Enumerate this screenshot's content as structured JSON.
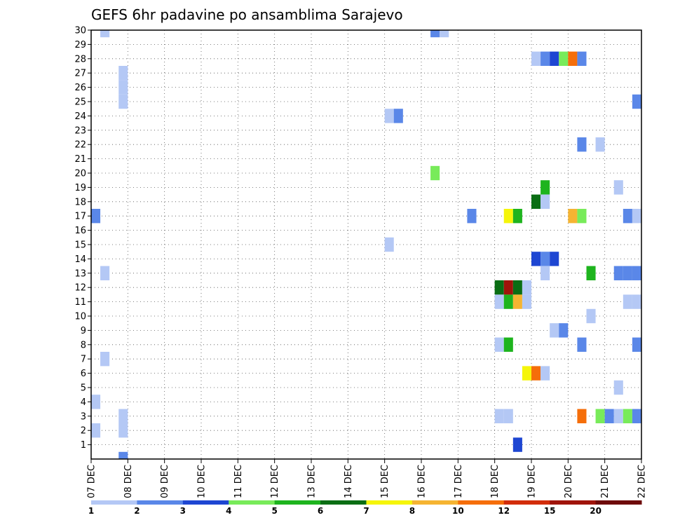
{
  "chart_data": {
    "type": "heatmap",
    "title": "GEFS 6hr padavine po ansamblima Sarajevo",
    "ylabel": "",
    "xlabel": "",
    "y_members": [
      "1",
      "2",
      "3",
      "4",
      "5",
      "6",
      "7",
      "8",
      "9",
      "10",
      "11",
      "12",
      "13",
      "14",
      "15",
      "16",
      "17",
      "18",
      "19",
      "20",
      "21",
      "22",
      "23",
      "24",
      "25",
      "26",
      "27",
      "28",
      "29",
      "30"
    ],
    "x_ticks": [
      "07 DEC",
      "08 DEC",
      "09 DEC",
      "10 DEC",
      "11 DEC",
      "12 DEC",
      "13 DEC",
      "14 DEC",
      "15 DEC",
      "16 DEC",
      "17 DEC",
      "18 DEC",
      "19 DEC",
      "20 DEC",
      "21 DEC",
      "22 DEC"
    ],
    "x_range_days": [
      0,
      15
    ],
    "y_range": [
      0,
      30
    ],
    "grid": true,
    "colorbar": {
      "labels": [
        "1",
        "2",
        "3",
        "4",
        "5",
        "6",
        "7",
        "8",
        "10",
        "12",
        "15",
        "20"
      ],
      "colors": [
        "#b4c8f5",
        "#5a87e8",
        "#1e46d2",
        "#78eb5a",
        "#1eb41e",
        "#0a6e14",
        "#f5f50a",
        "#f5b432",
        "#f56e0a",
        "#d22d0a",
        "#a0140a",
        "#6e0a0a"
      ]
    },
    "cells": [
      {
        "m": 30,
        "t": 0.25,
        "c": 1
      },
      {
        "m": 30,
        "t": 9.25,
        "c": 2
      },
      {
        "m": 30,
        "t": 9.5,
        "c": 1
      },
      {
        "m": 28,
        "t": 12.0,
        "c": 1
      },
      {
        "m": 28,
        "t": 12.25,
        "c": 2
      },
      {
        "m": 28,
        "t": 12.5,
        "c": 3
      },
      {
        "m": 28,
        "t": 12.75,
        "c": 4
      },
      {
        "m": 28,
        "t": 13.0,
        "c": 9
      },
      {
        "m": 28,
        "t": 13.25,
        "c": 2
      },
      {
        "m": 27,
        "t": 0.75,
        "c": 1
      },
      {
        "m": 26,
        "t": 0.75,
        "c": 1
      },
      {
        "m": 25,
        "t": 0.75,
        "c": 1
      },
      {
        "m": 25,
        "t": 14.75,
        "c": 2
      },
      {
        "m": 24,
        "t": 8.0,
        "c": 1
      },
      {
        "m": 24,
        "t": 8.25,
        "c": 2
      },
      {
        "m": 22,
        "t": 13.25,
        "c": 2
      },
      {
        "m": 22,
        "t": 13.75,
        "c": 1
      },
      {
        "m": 20,
        "t": 9.25,
        "c": 4
      },
      {
        "m": 19,
        "t": 12.25,
        "c": 5
      },
      {
        "m": 19,
        "t": 14.25,
        "c": 1
      },
      {
        "m": 18,
        "t": 12.0,
        "c": 6
      },
      {
        "m": 18,
        "t": 12.25,
        "c": 1
      },
      {
        "m": 17,
        "t": 0.0,
        "c": 2
      },
      {
        "m": 17,
        "t": 10.25,
        "c": 2
      },
      {
        "m": 17,
        "t": 11.25,
        "c": 7
      },
      {
        "m": 17,
        "t": 11.5,
        "c": 5
      },
      {
        "m": 17,
        "t": 13.0,
        "c": 8
      },
      {
        "m": 17,
        "t": 13.25,
        "c": 4
      },
      {
        "m": 17,
        "t": 14.5,
        "c": 2
      },
      {
        "m": 17,
        "t": 14.75,
        "c": 1
      },
      {
        "m": 15,
        "t": 8.0,
        "c": 1
      },
      {
        "m": 14,
        "t": 12.0,
        "c": 3
      },
      {
        "m": 14,
        "t": 12.25,
        "c": 2
      },
      {
        "m": 14,
        "t": 12.5,
        "c": 3
      },
      {
        "m": 13,
        "t": 0.25,
        "c": 1
      },
      {
        "m": 13,
        "t": 12.25,
        "c": 1
      },
      {
        "m": 13,
        "t": 13.5,
        "c": 5
      },
      {
        "m": 13,
        "t": 14.25,
        "c": 2
      },
      {
        "m": 13,
        "t": 14.5,
        "c": 2
      },
      {
        "m": 13,
        "t": 14.75,
        "c": 2
      },
      {
        "m": 12,
        "t": 11.0,
        "c": 6
      },
      {
        "m": 12,
        "t": 11.25,
        "c": 11
      },
      {
        "m": 12,
        "t": 11.5,
        "c": 6
      },
      {
        "m": 12,
        "t": 11.75,
        "c": 1
      },
      {
        "m": 11,
        "t": 11.0,
        "c": 1
      },
      {
        "m": 11,
        "t": 11.25,
        "c": 5
      },
      {
        "m": 11,
        "t": 11.5,
        "c": 8
      },
      {
        "m": 11,
        "t": 11.75,
        "c": 1
      },
      {
        "m": 11,
        "t": 14.5,
        "c": 1
      },
      {
        "m": 11,
        "t": 14.75,
        "c": 1
      },
      {
        "m": 10,
        "t": 13.5,
        "c": 1
      },
      {
        "m": 9,
        "t": 12.5,
        "c": 1
      },
      {
        "m": 9,
        "t": 12.75,
        "c": 2
      },
      {
        "m": 8,
        "t": 11.0,
        "c": 1
      },
      {
        "m": 8,
        "t": 11.25,
        "c": 5
      },
      {
        "m": 8,
        "t": 13.25,
        "c": 2
      },
      {
        "m": 8,
        "t": 14.75,
        "c": 2
      },
      {
        "m": 7,
        "t": 0.25,
        "c": 1
      },
      {
        "m": 6,
        "t": 11.75,
        "c": 7
      },
      {
        "m": 6,
        "t": 12.0,
        "c": 9
      },
      {
        "m": 6,
        "t": 12.25,
        "c": 1
      },
      {
        "m": 5,
        "t": 14.25,
        "c": 1
      },
      {
        "m": 4,
        "t": 0.0,
        "c": 1
      },
      {
        "m": 3,
        "t": 0.75,
        "c": 1
      },
      {
        "m": 3,
        "t": 11.0,
        "c": 1
      },
      {
        "m": 3,
        "t": 11.25,
        "c": 1
      },
      {
        "m": 3,
        "t": 13.25,
        "c": 9
      },
      {
        "m": 3,
        "t": 13.75,
        "c": 4
      },
      {
        "m": 3,
        "t": 14.0,
        "c": 2
      },
      {
        "m": 3,
        "t": 14.25,
        "c": 1
      },
      {
        "m": 3,
        "t": 14.5,
        "c": 4
      },
      {
        "m": 3,
        "t": 14.75,
        "c": 2
      },
      {
        "m": 2,
        "t": 0.0,
        "c": 1
      },
      {
        "m": 2,
        "t": 0.75,
        "c": 1
      },
      {
        "m": 1,
        "t": 11.5,
        "c": 3
      },
      {
        "m": 0,
        "t": 0.75,
        "c": 2
      }
    ]
  }
}
